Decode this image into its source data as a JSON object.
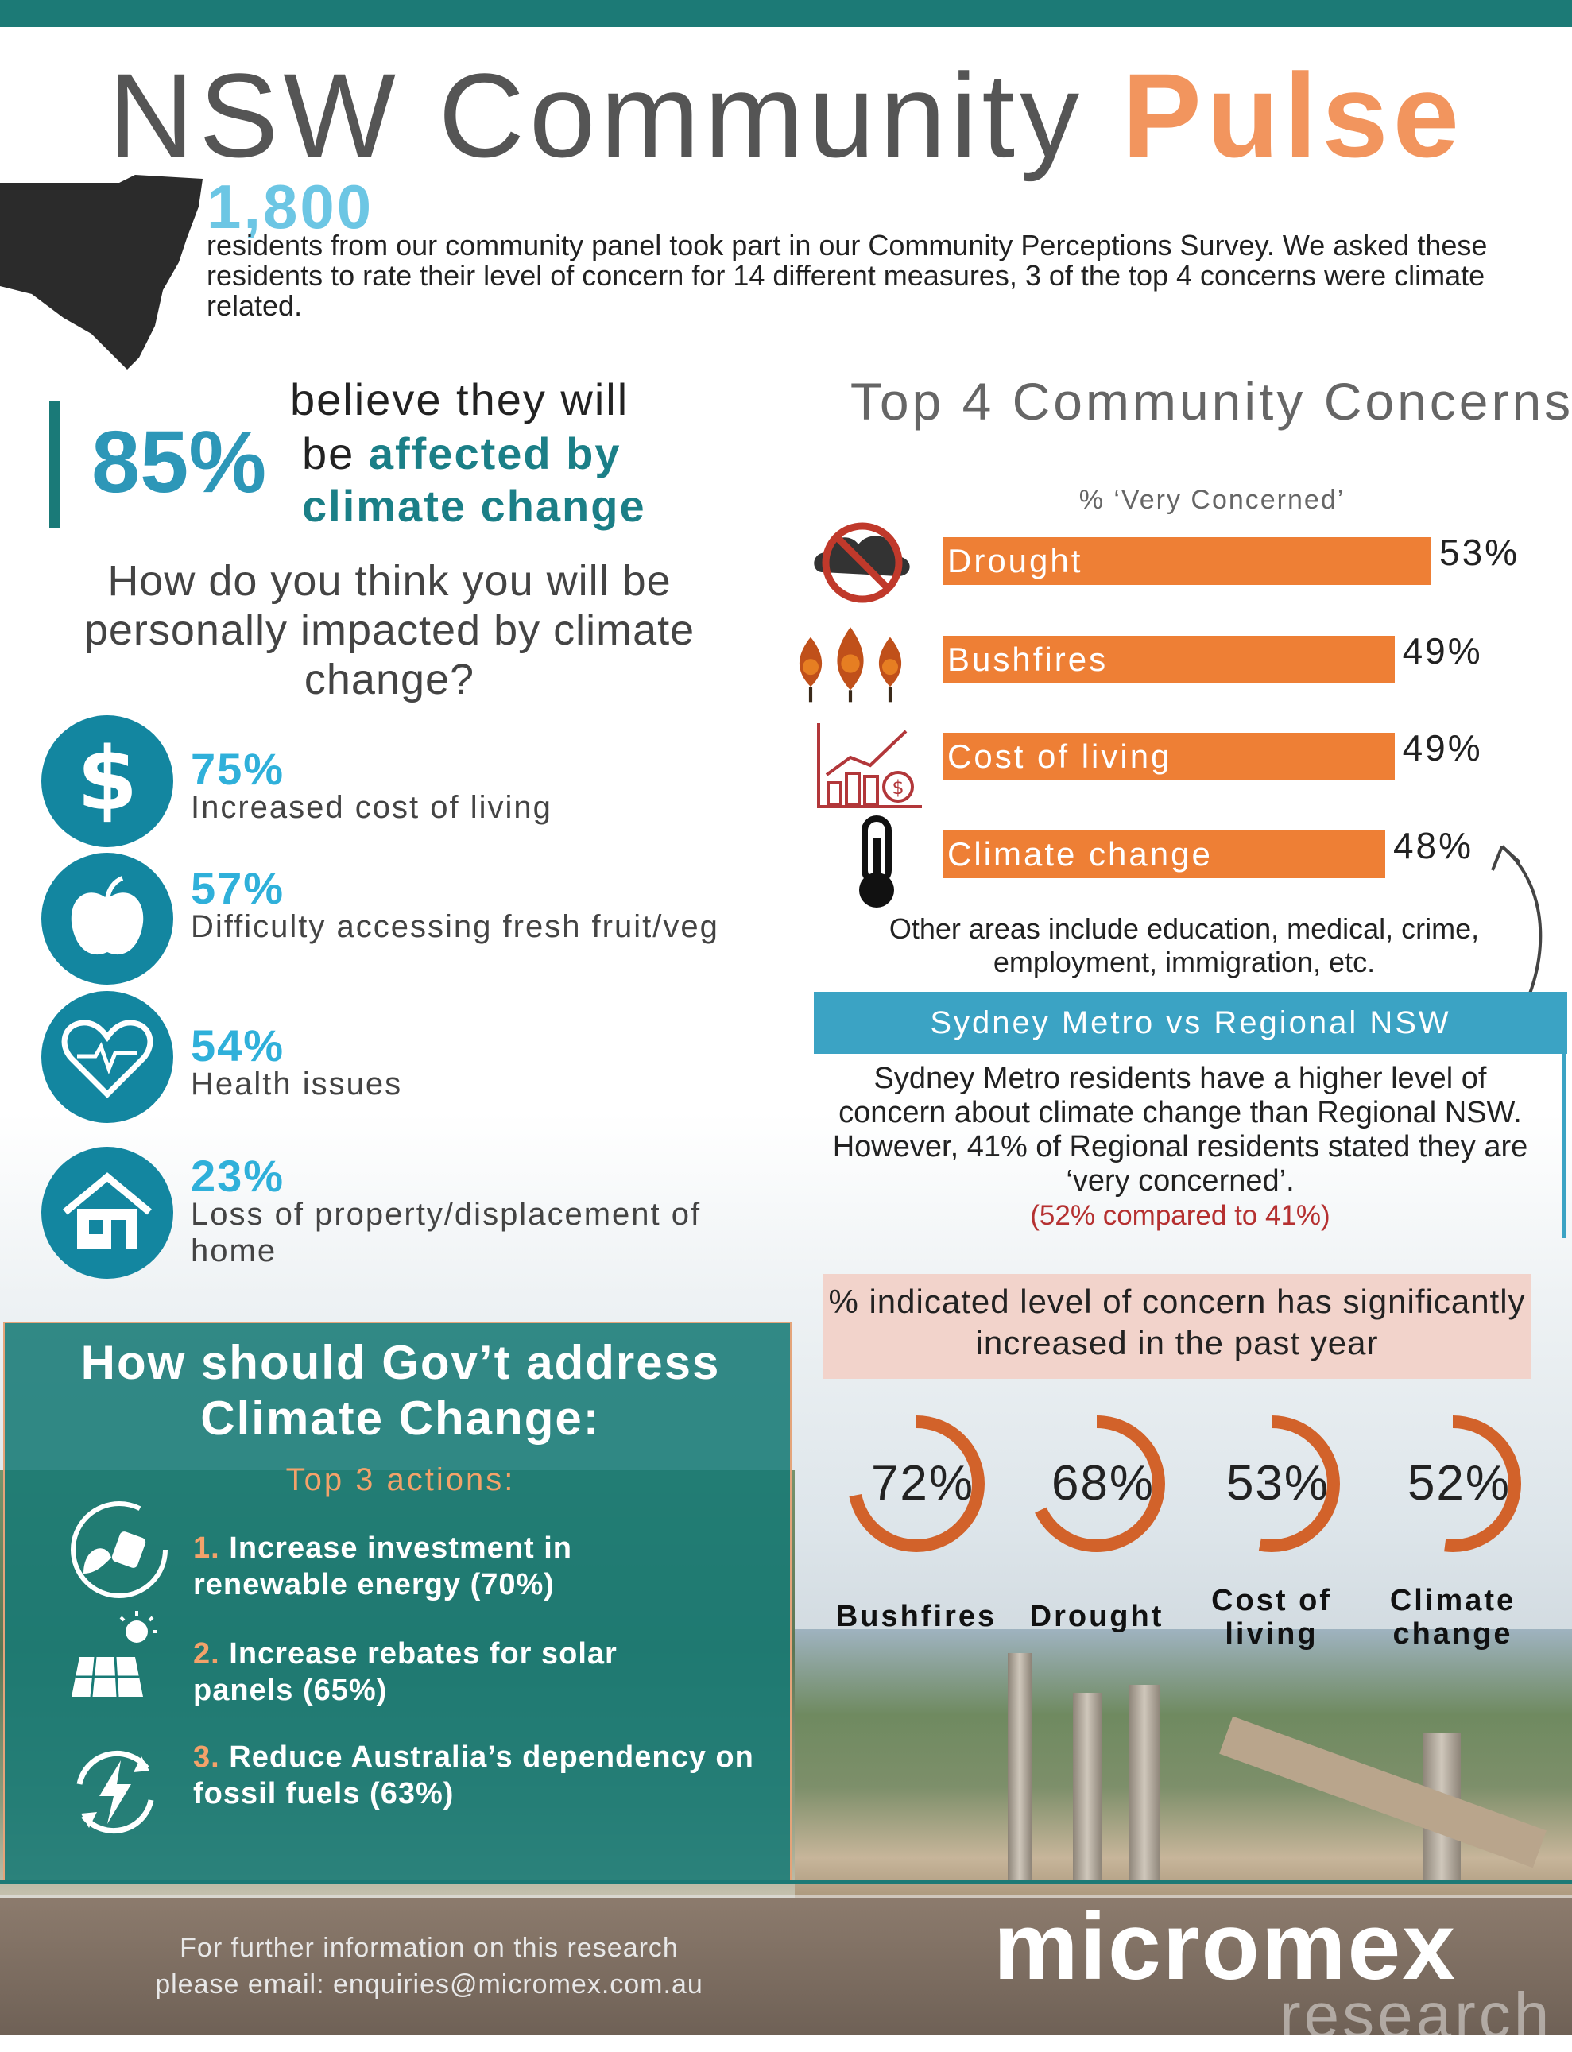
{
  "header": {
    "title_part1": "NSW Community",
    "title_part2": "Pulse"
  },
  "intro": {
    "count": "1,800",
    "description": "residents from our community panel took part in our Community Perceptions Survey. We asked these residents to rate their level of concern for 14 different measures, 3 of the top 4 concerns were climate related."
  },
  "belief": {
    "percent": "85%",
    "line1": "believe they will",
    "line2_prefix": "be",
    "line2_bold": "affected by",
    "line3": "climate change"
  },
  "impacts": {
    "question": "How do you think you will be personally impacted by climate change?",
    "items": [
      {
        "percent": "75%",
        "label": "Increased cost of living",
        "icon": "dollar-icon"
      },
      {
        "percent": "57%",
        "label": "Difficulty accessing fresh fruit/veg",
        "icon": "apple-icon"
      },
      {
        "percent": "54%",
        "label": "Health issues",
        "icon": "heart-pulse-icon"
      },
      {
        "percent": "23%",
        "label": "Loss of property/displacement of home",
        "icon": "house-icon"
      }
    ]
  },
  "concerns": {
    "title": "Top 4 Community Concerns",
    "subtitle": "% ‘Very Concerned’",
    "bar_color": "#ee7f35",
    "other": "Other areas include education, medical, crime, employment, immigration, etc."
  },
  "chart_data": [
    {
      "type": "bar",
      "title": "Top 4 Community Concerns",
      "subtitle": "% ‘Very Concerned’",
      "categories": [
        "Drought",
        "Bushfires",
        "Cost of living",
        "Climate change"
      ],
      "values": [
        53,
        49,
        49,
        48
      ],
      "value_labels": [
        "53%",
        "49%",
        "49%",
        "48%"
      ],
      "orientation": "horizontal",
      "xlim": [
        0,
        62
      ]
    },
    {
      "type": "pie",
      "title": "% indicated level of concern has significantly increased in the past year",
      "categories": [
        "Bushfires",
        "Drought",
        "Cost of living",
        "Climate change"
      ],
      "values": [
        72,
        68,
        53,
        52
      ],
      "value_labels": [
        "72%",
        "68%",
        "53%",
        "52%"
      ],
      "style": "donut"
    }
  ],
  "metro": {
    "title": "Sydney Metro vs Regional NSW",
    "description": "Sydney Metro residents have a higher level of concern about climate change than Regional NSW. However, 41% of Regional residents stated they are ‘very concerned’.",
    "compare": "(52% compared to 41%)"
  },
  "increase": {
    "title": "% indicated level of concern has significantly increased in the past year",
    "labels": [
      "Bushfires",
      "Drought",
      "Cost of living",
      "Climate change"
    ],
    "ring_color": "#d2622a"
  },
  "gov": {
    "title": "How should Gov’t address Climate Change:",
    "subtitle": "Top 3 actions:",
    "items": [
      {
        "num": "1.",
        "text": "Increase investment in renewable energy (70%)",
        "icon": "plug-leaf-icon"
      },
      {
        "num": "2.",
        "text": "Increase rebates for solar panels (65%)",
        "icon": "solar-panel-icon"
      },
      {
        "num": "3.",
        "text": "Reduce Australia’s dependency on fossil fuels (63%)",
        "icon": "lightning-cycle-icon"
      }
    ]
  },
  "footer": {
    "line1": "For further information on this research",
    "line2": "please email: enquiries@micromex.com.au",
    "logo_main": "micromex",
    "logo_sub": "research"
  }
}
